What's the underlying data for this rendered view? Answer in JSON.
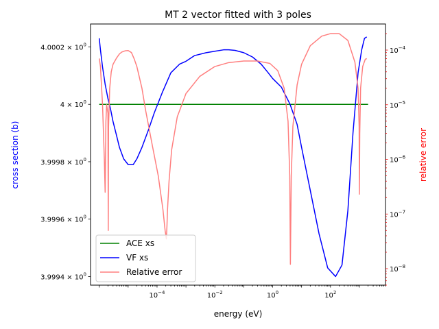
{
  "chart_data": {
    "type": "line",
    "title": "MT 2 vector fitted with 3 poles",
    "xlabel": "energy (eV)",
    "ylabel_left": "cross section (b)",
    "ylabel_right": "relative error",
    "x_scale": "log",
    "x_range": [
      5e-07,
      8000
    ],
    "x_ticks": [
      {
        "value": 0.0001,
        "base": "10",
        "exp": "−4"
      },
      {
        "value": 0.01,
        "base": "10",
        "exp": "−2"
      },
      {
        "value": 1,
        "base": "10",
        "exp": "0"
      },
      {
        "value": 100,
        "base": "10",
        "exp": "2"
      }
    ],
    "left_axis": {
      "scale": "log",
      "range": [
        3.99937,
        4.00028
      ],
      "ticks": [
        {
          "value": 4.0002,
          "mantissa": "4.0002",
          "exp": "0"
        },
        {
          "value": 4.0,
          "mantissa": "4",
          "exp": "0"
        },
        {
          "value": 3.9998,
          "mantissa": "3.9998",
          "exp": "0"
        },
        {
          "value": 3.9996,
          "mantissa": "3.9996",
          "exp": "0"
        },
        {
          "value": 3.9994,
          "mantissa": "3.9994",
          "exp": "0"
        }
      ]
    },
    "right_axis": {
      "scale": "log",
      "range": [
        5e-09,
        0.0003
      ],
      "ticks": [
        {
          "value": 0.0001,
          "base": "10",
          "exp": "−4"
        },
        {
          "value": 1e-05,
          "base": "10",
          "exp": "−5"
        },
        {
          "value": 1e-06,
          "base": "10",
          "exp": "−6"
        },
        {
          "value": 1e-07,
          "base": "10",
          "exp": "−7"
        },
        {
          "value": 1e-08,
          "base": "10",
          "exp": "−8"
        }
      ]
    },
    "legend_position": "lower-left",
    "series": [
      {
        "name": "ACE xs",
        "axis": "left",
        "color": "#008000",
        "x": [
          1e-06,
          2000
        ],
        "y": [
          4.0,
          4.0
        ]
      },
      {
        "name": "VF xs",
        "axis": "left",
        "color": "#0000ff",
        "x": [
          1e-06,
          1.1e-06,
          1.3e-06,
          1.6e-06,
          2e-06,
          2.5e-06,
          3e-06,
          4e-06,
          5e-06,
          7e-06,
          1e-05,
          1.5e-05,
          2e-05,
          3e-05,
          5e-05,
          8e-05,
          0.00015,
          0.0003,
          0.0006,
          0.001,
          0.002,
          0.005,
          0.01,
          0.02,
          0.03,
          0.05,
          0.1,
          0.2,
          0.4,
          0.7,
          1,
          2,
          4,
          7,
          10,
          20,
          40,
          80,
          150,
          250,
          400,
          600,
          900,
          1200,
          1500,
          1800
        ],
        "y": [
          4.00023,
          4.00019,
          4.00013,
          4.00007,
          4.00002,
          3.99998,
          3.99994,
          3.99989,
          3.99985,
          3.99981,
          3.99979,
          3.99979,
          3.99981,
          3.99985,
          3.99991,
          3.99997,
          4.00004,
          4.00011,
          4.00014,
          4.00015,
          4.00017,
          4.00018,
          4.000185,
          4.00019,
          4.00019,
          4.000188,
          4.00018,
          4.000165,
          4.00014,
          4.00011,
          4.00009,
          4.00006,
          4.0,
          3.99993,
          3.99985,
          3.9997,
          3.99955,
          3.99943,
          3.9994,
          3.99944,
          3.99963,
          3.9999,
          4.00011,
          4.00019,
          4.00023,
          4.000235
        ]
      },
      {
        "name": "Relative error",
        "axis": "right",
        "color": "#ff7f7f",
        "x": [
          1e-06,
          1.1e-06,
          1.3e-06,
          1.5e-06,
          1.6e-06,
          1.7e-06,
          1.8e-06,
          2e-06,
          2.05e-06,
          2.1e-06,
          2.3e-06,
          2.6e-06,
          3e-06,
          4e-06,
          5e-06,
          6e-06,
          8e-06,
          1e-05,
          1.3e-05,
          1.6e-05,
          2e-05,
          3e-05,
          4e-05,
          7e-05,
          0.00011,
          0.00016,
          0.00019,
          0.00021,
          0.00022,
          0.00023,
          0.00026,
          0.00032,
          0.0005,
          0.001,
          0.003,
          0.01,
          0.03,
          0.1,
          0.3,
          0.8,
          1.5,
          2.5,
          3.4,
          3.9,
          4.1,
          4.4,
          5,
          7,
          10,
          20,
          50,
          100,
          200,
          400,
          700,
          900,
          980,
          1000,
          1030,
          1100,
          1300,
          1600,
          1800
        ],
        "y": [
          7e-05,
          5e-05,
          1e-05,
          1e-06,
          2.5e-07,
          5e-06,
          1e-05,
          7e-06,
          5e-08,
          4e-06,
          2e-05,
          4e-05,
          5.5e-05,
          7.2e-05,
          8.5e-05,
          9.2e-05,
          9.7e-05,
          9.8e-05,
          9e-05,
          7e-05,
          5e-05,
          2e-05,
          8e-06,
          1.7e-06,
          5e-07,
          1.2e-07,
          5e-08,
          3.5e-08,
          6e-08,
          1.2e-07,
          4e-07,
          1.5e-06,
          6e-06,
          1.6e-05,
          3.3e-05,
          5e-05,
          5.9e-05,
          6.3e-05,
          6.3e-05,
          5.7e-05,
          4.2e-05,
          2e-05,
          5e-06,
          5e-07,
          1.2e-08,
          5e-07,
          4e-06,
          2.3e-05,
          5.5e-05,
          0.00012,
          0.00018,
          0.0002,
          0.0002,
          0.00015,
          6e-05,
          2e-05,
          4e-06,
          2.3e-07,
          3e-06,
          2e-05,
          5e-05,
          6.8e-05,
          7e-05
        ]
      }
    ]
  }
}
